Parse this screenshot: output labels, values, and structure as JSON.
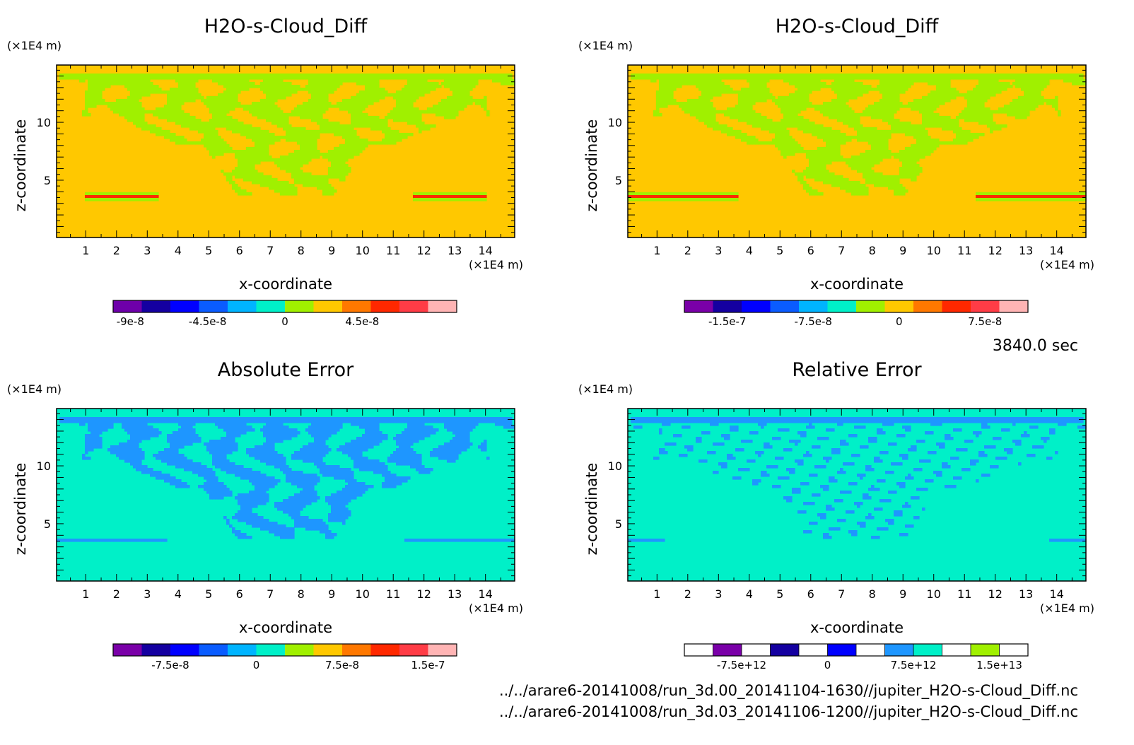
{
  "time_label": "3840.0 sec",
  "file_paths": [
    "../../arare6-20141008/run_3d.00_20141104-1630//jupiter_H2O-s-Cloud_Diff.nc",
    "../../arare6-20141008/run_3d.03_20141106-1200//jupiter_H2O-s-Cloud_Diff.nc"
  ],
  "colors": {
    "palette": [
      "#7a00a8",
      "#1400a0",
      "#0000ff",
      "#0a5cff",
      "#00b4ff",
      "#00f0c8",
      "#a0f000",
      "#ffc800",
      "#ff7800",
      "#ff2800",
      "#ff3c46",
      "#ffb4b4"
    ],
    "background_field": "#ffc800",
    "green_field": "#a0f000",
    "cyan_field": "#00f0c8",
    "blue_field": "#1e96ff"
  },
  "chart_data": [
    {
      "type": "heatmap",
      "title": "H2O-s-Cloud_Diff",
      "xlabel": "x-coordinate",
      "ylabel": "z-coordinate",
      "x_unit": "(×1E4 m)",
      "y_unit": "(×1E4 m)",
      "xlim": [
        0.05,
        14.95
      ],
      "ylim": [
        0.05,
        14.95
      ],
      "x_ticks": [
        "1",
        "2",
        "3",
        "4",
        "5",
        "6",
        "7",
        "8",
        "9",
        "10",
        "11",
        "12",
        "13",
        "14"
      ],
      "y_ticks": [
        "5",
        "10"
      ],
      "colorbar": {
        "min": -1e-07,
        "max": 1e-07,
        "bins": 12,
        "ticks": [
          {
            "value": -9e-08,
            "label": "-9e-8"
          },
          {
            "value": -4.5e-08,
            "label": "-4.5e-8"
          },
          {
            "value": 0,
            "label": "0"
          },
          {
            "value": 4.5e-08,
            "label": "4.5e-8"
          }
        ]
      },
      "field": "base",
      "colors": [
        "#6e00aa",
        "#1400a0",
        "#0000ff",
        "#0a5cff",
        "#00b4ff",
        "#00f0c8",
        "#a0f000",
        "#ffc800",
        "#ff7800",
        "#ff2800",
        "#ff3c46",
        "#ffb4b4"
      ]
    },
    {
      "type": "heatmap",
      "title": "H2O-s-Cloud_Diff",
      "xlabel": "x-coordinate",
      "ylabel": "z-coordinate",
      "x_unit": "(×1E4 m)",
      "y_unit": "(×1E4 m)",
      "xlim": [
        0.05,
        14.95
      ],
      "ylim": [
        0.05,
        14.95
      ],
      "x_ticks": [
        "1",
        "2",
        "3",
        "4",
        "5",
        "6",
        "7",
        "8",
        "9",
        "10",
        "11",
        "12",
        "13",
        "14"
      ],
      "y_ticks": [
        "5",
        "10"
      ],
      "colorbar": {
        "min": -1.875e-07,
        "max": 1.125e-07,
        "bins": 12,
        "ticks": [
          {
            "value": -1.5e-07,
            "label": "-1.5e-7"
          },
          {
            "value": -7.5e-08,
            "label": "-7.5e-8"
          },
          {
            "value": 0,
            "label": "0"
          },
          {
            "value": 7.5e-08,
            "label": "7.5e-8"
          }
        ]
      },
      "field": "base2",
      "colors": [
        "#7a00a8",
        "#1400a0",
        "#0000ff",
        "#0a5cff",
        "#00b4ff",
        "#00f0c8",
        "#a0f000",
        "#ffc800",
        "#ff7800",
        "#ff2800",
        "#ff3c46",
        "#ffb4b4"
      ]
    },
    {
      "type": "heatmap",
      "title": "Absolute Error",
      "xlabel": "x-coordinate",
      "ylabel": "z-coordinate",
      "x_unit": "(×1E4 m)",
      "y_unit": "(×1E4 m)",
      "xlim": [
        0.05,
        14.95
      ],
      "ylim": [
        0.05,
        14.95
      ],
      "x_ticks": [
        "1",
        "2",
        "3",
        "4",
        "5",
        "6",
        "7",
        "8",
        "9",
        "10",
        "11",
        "12",
        "13",
        "14"
      ],
      "y_ticks": [
        "5",
        "10"
      ],
      "colorbar": {
        "min": -1.25e-07,
        "max": 1.75e-07,
        "bins": 12,
        "ticks": [
          {
            "value": -7.5e-08,
            "label": "-7.5e-8"
          },
          {
            "value": 0,
            "label": "0"
          },
          {
            "value": 7.5e-08,
            "label": "7.5e-8"
          },
          {
            "value": 1.5e-07,
            "label": "1.5e-7"
          }
        ]
      },
      "field": "abs",
      "colors": [
        "#7a00a8",
        "#1400a0",
        "#0000ff",
        "#0a5cff",
        "#00b4ff",
        "#00f0c8",
        "#a0f000",
        "#ffc800",
        "#ff7800",
        "#ff2800",
        "#ff3c46",
        "#ffb4b4"
      ]
    },
    {
      "type": "heatmap",
      "title": "Relative Error",
      "xlabel": "x-coordinate",
      "ylabel": "z-coordinate",
      "x_unit": "(×1E4 m)",
      "y_unit": "(×1E4 m)",
      "xlim": [
        0.05,
        14.95
      ],
      "ylim": [
        0.05,
        14.95
      ],
      "x_ticks": [
        "1",
        "2",
        "3",
        "4",
        "5",
        "6",
        "7",
        "8",
        "9",
        "10",
        "11",
        "12",
        "13",
        "14"
      ],
      "y_ticks": [
        "5",
        "10"
      ],
      "colorbar": {
        "min": -12500000000000,
        "max": 17500000000000,
        "bins": 12,
        "ticks": [
          {
            "value": -7500000000000,
            "label": "-7.5e+12"
          },
          {
            "value": 0,
            "label": "0"
          },
          {
            "value": 7500000000000,
            "label": "7.5e+12"
          },
          {
            "value": 15000000000000,
            "label": "1.5e+13"
          }
        ]
      },
      "field": "rel",
      "colors": [
        "#ffffff",
        "#7a00a8",
        "#ffffff",
        "#1400a0",
        "#ffffff",
        "#0000ff",
        "#ffffff",
        "#1e96ff",
        "#00f0c8",
        "#ffffff",
        "#a0f000",
        "#ffffff"
      ]
    }
  ]
}
